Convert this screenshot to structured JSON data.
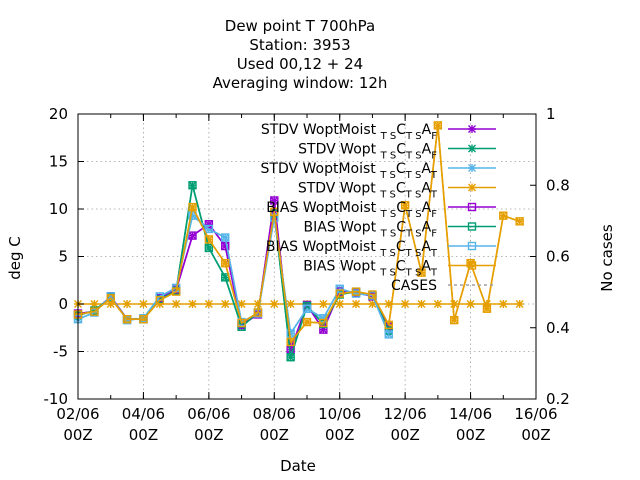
{
  "chart_data": {
    "type": "line",
    "title_lines": [
      "Dew point T 700hPa",
      "Station:     3953",
      "Used  00,12  + 24",
      "Averaging window: 12h"
    ],
    "xlabel": "Date",
    "ylabel": "deg C",
    "y2label": "No cases",
    "ylim": [
      -10,
      20
    ],
    "y2lim": [
      0.2,
      1.0
    ],
    "yticks": [
      "-10",
      "-5",
      "0",
      "5",
      "10",
      "15",
      "20"
    ],
    "y2ticks": [
      "0.2",
      "0.4",
      "0.6",
      "0.8",
      "1"
    ],
    "xticks": [
      {
        "line1": "02/06",
        "line2": "00Z"
      },
      {
        "line1": "04/06",
        "line2": "00Z"
      },
      {
        "line1": "06/06",
        "line2": "00Z"
      },
      {
        "line1": "08/06",
        "line2": "00Z"
      },
      {
        "line1": "10/06",
        "line2": "00Z"
      },
      {
        "line1": "12/06",
        "line2": "00Z"
      },
      {
        "line1": "14/06",
        "line2": "00Z"
      },
      {
        "line1": "16/06",
        "line2": "00Z"
      }
    ],
    "grid": true,
    "legend_position": "top-right",
    "x_days": [
      2.0,
      2.5,
      3.0,
      3.5,
      4.0,
      4.5,
      5.0,
      5.5,
      6.0,
      6.5,
      7.0,
      7.5,
      8.0,
      8.5,
      9.0,
      9.5,
      10.0,
      10.5,
      11.0,
      11.5,
      12.0,
      12.5,
      13.0,
      13.5,
      14.0,
      14.5,
      15.0,
      15.5
    ],
    "series": [
      {
        "name": "STDV WoptMoist",
        "sub": "T S",
        "mid": "C",
        "sub2": "T S",
        "end": "A",
        "endsub": "F",
        "color": "#9400d3",
        "marker": "x",
        "values": [
          -1,
          -0.8,
          0.8,
          -1.6,
          -1.6,
          0.6,
          1.5,
          7.2,
          8.4,
          6.1,
          -2.2,
          -1.1,
          10.9,
          -4.8,
          -0.1,
          -2.7,
          1.3,
          1.2,
          0.8,
          -2.4,
          null,
          null,
          null,
          null,
          null,
          null,
          null,
          null
        ]
      },
      {
        "name": "STDV Wopt",
        "sub": "T S",
        "mid": "C",
        "sub2": "T S",
        "end": "A",
        "endsub": "F",
        "color": "#009e73",
        "marker": "x",
        "values": [
          -1.2,
          -0.7,
          0.7,
          -1.6,
          -1.6,
          0.5,
          1.4,
          12.5,
          5.9,
          2.8,
          -2.4,
          -0.9,
          9.5,
          -5.6,
          -0.2,
          -2.1,
          1.0,
          1.3,
          0.9,
          -2.8,
          null,
          null,
          null,
          null,
          null,
          null,
          null,
          null
        ]
      },
      {
        "name": "STDV WoptMoist",
        "sub": "T S",
        "mid": "C",
        "sub2": "T S",
        "end": "A",
        "endsub": "T",
        "color": "#56b4e9",
        "marker": "x",
        "values": [
          -1.6,
          -0.9,
          0.8,
          -1.7,
          -1.5,
          0.8,
          1.7,
          9.3,
          7.9,
          7.0,
          -1.9,
          -1.0,
          9.1,
          -3.1,
          -0.5,
          -1.5,
          1.6,
          1.1,
          0.9,
          -3.2,
          null,
          null,
          null,
          null,
          null,
          null,
          null,
          null
        ]
      },
      {
        "name": "STDV Wopt",
        "sub": "T S",
        "mid": "C",
        "sub2": "T S",
        "end": "A",
        "endsub": "T",
        "color": "#e69f00",
        "marker": "x",
        "values": [
          -1.1,
          -0.8,
          0.6,
          -1.6,
          -1.6,
          0.4,
          1.3,
          10.2,
          6.8,
          4.3,
          -2.0,
          -0.9,
          9.7,
          -4.0,
          -1.9,
          -2.0,
          1.1,
          1.3,
          1.0,
          -2.2,
          10.4,
          3.3,
          18.8,
          -1.7,
          4.3,
          -0.5,
          9.3,
          8.7
        ]
      },
      {
        "name": "BIAS WoptMoist",
        "sub": "T S",
        "mid": "C",
        "sub2": "T S",
        "end": "A",
        "endsub": "F",
        "color": "#9400d3",
        "marker": "square",
        "values": [
          -1,
          -0.8,
          0.8,
          -1.6,
          -1.6,
          0.6,
          1.5,
          7.2,
          8.4,
          6.1,
          -2.2,
          -1.1,
          10.9,
          -4.8,
          -0.1,
          -2.7,
          1.3,
          1.2,
          0.8,
          -2.4,
          null,
          null,
          null,
          null,
          null,
          null,
          null,
          null
        ]
      },
      {
        "name": "BIAS Wopt",
        "sub": "T S",
        "mid": "C",
        "sub2": "T S",
        "end": "A",
        "endsub": "F",
        "color": "#009e73",
        "marker": "square",
        "values": [
          -1.2,
          -0.7,
          0.7,
          -1.6,
          -1.6,
          0.5,
          1.4,
          12.5,
          5.9,
          2.8,
          -2.4,
          -0.9,
          9.5,
          -5.6,
          -0.2,
          -2.1,
          1.0,
          1.3,
          0.9,
          -2.8,
          null,
          null,
          null,
          null,
          null,
          null,
          null,
          null
        ]
      },
      {
        "name": "BIAS WoptMoist",
        "sub": "T S",
        "mid": "C",
        "sub2": "T S",
        "end": "A",
        "endsub": "T",
        "color": "#56b4e9",
        "marker": "square",
        "values": [
          -1.6,
          -0.9,
          0.8,
          -1.7,
          -1.5,
          0.8,
          1.7,
          9.3,
          7.9,
          7.0,
          -1.9,
          -1.0,
          9.1,
          -3.1,
          -0.5,
          -1.5,
          1.6,
          1.1,
          0.9,
          -3.2,
          null,
          null,
          null,
          null,
          null,
          null,
          null,
          null
        ]
      },
      {
        "name": "BIAS Wopt",
        "sub": "T S",
        "mid": "C",
        "sub2": "T S",
        "end": "A",
        "endsub": "T",
        "color": "#e69f00",
        "marker": "square",
        "values": [
          -1.1,
          -0.8,
          0.6,
          -1.6,
          -1.6,
          0.4,
          1.3,
          10.2,
          6.8,
          4.3,
          -2.0,
          -0.9,
          9.7,
          -4.0,
          -1.9,
          -2.0,
          1.1,
          1.3,
          1.0,
          -2.2,
          10.4,
          3.3,
          18.8,
          -1.7,
          4.3,
          -0.5,
          9.3,
          8.7
        ]
      },
      {
        "name": "CASES",
        "color": "#a0a0a0",
        "marker": "none",
        "dashed": true,
        "axis": "y2",
        "values": []
      }
    ],
    "zero_line": {
      "color": "#e69f00",
      "marker": "x",
      "value": 0
    }
  }
}
